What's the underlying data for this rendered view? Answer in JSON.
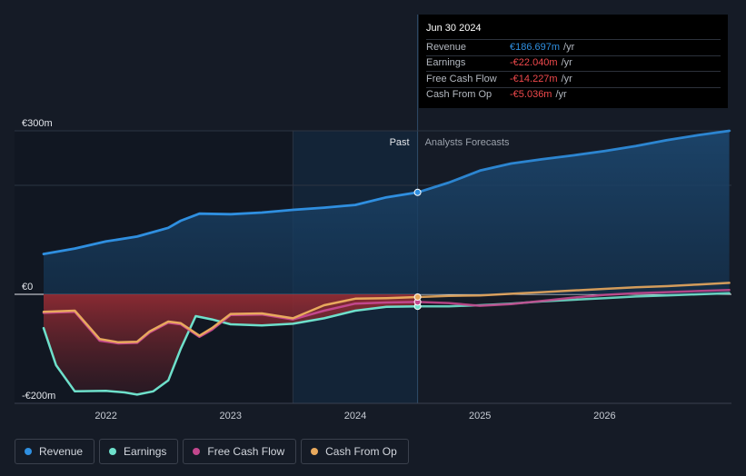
{
  "tooltip": {
    "date": "Jun 30 2024",
    "rows": [
      {
        "label": "Revenue",
        "value": "€186.697m",
        "unit": "/yr",
        "color": "#2f8fe0"
      },
      {
        "label": "Earnings",
        "value": "-€22.040m",
        "unit": "/yr",
        "color": "#f0494c"
      },
      {
        "label": "Free Cash Flow",
        "value": "-€14.227m",
        "unit": "/yr",
        "color": "#f0494c"
      },
      {
        "label": "Cash From Op",
        "value": "-€5.036m",
        "unit": "/yr",
        "color": "#f0494c"
      }
    ]
  },
  "region_labels": {
    "past": "Past",
    "forecast": "Analysts Forecasts"
  },
  "legend": [
    {
      "label": "Revenue",
      "color": "#2f8fe0"
    },
    {
      "label": "Earnings",
      "color": "#6ee0cb"
    },
    {
      "label": "Free Cash Flow",
      "color": "#c2478d"
    },
    {
      "label": "Cash From Op",
      "color": "#e8a95d"
    }
  ],
  "chart_data": {
    "type": "line",
    "currency_unit": "€m",
    "ylim": [
      -200,
      300
    ],
    "y_ticks": [
      {
        "value": 300,
        "label": "€300m"
      },
      {
        "value": 0,
        "label": "€0"
      },
      {
        "value": -200,
        "label": "-€200m"
      }
    ],
    "x_ticks": [
      {
        "value": 2022,
        "label": "2022"
      },
      {
        "value": 2023,
        "label": "2023"
      },
      {
        "value": 2024,
        "label": "2024"
      },
      {
        "value": 2025,
        "label": "2025"
      },
      {
        "value": 2026,
        "label": "2026"
      }
    ],
    "xlim": [
      2021.5,
      2027.0
    ],
    "past_end": 2024.5,
    "highlight_start": 2023.5,
    "series": [
      {
        "name": "Revenue",
        "color": "#2f8fe0",
        "points": [
          [
            2021.5,
            74
          ],
          [
            2021.75,
            84
          ],
          [
            2022.0,
            97
          ],
          [
            2022.25,
            106
          ],
          [
            2022.5,
            122
          ],
          [
            2022.6,
            135
          ],
          [
            2022.75,
            148
          ],
          [
            2023.0,
            147
          ],
          [
            2023.25,
            150
          ],
          [
            2023.5,
            155
          ],
          [
            2023.75,
            159
          ],
          [
            2024.0,
            164
          ],
          [
            2024.25,
            178
          ],
          [
            2024.5,
            187
          ],
          [
            2024.75,
            205
          ],
          [
            2025.0,
            227
          ],
          [
            2025.25,
            240
          ],
          [
            2025.5,
            248
          ],
          [
            2025.75,
            255
          ],
          [
            2026.0,
            263
          ],
          [
            2026.25,
            272
          ],
          [
            2026.5,
            283
          ],
          [
            2026.75,
            292
          ],
          [
            2027.0,
            300
          ]
        ]
      },
      {
        "name": "Earnings",
        "color": "#6ee0cb",
        "points": [
          [
            2021.5,
            -62
          ],
          [
            2021.6,
            -130
          ],
          [
            2021.75,
            -178
          ],
          [
            2022.0,
            -177
          ],
          [
            2022.15,
            -180
          ],
          [
            2022.25,
            -184
          ],
          [
            2022.38,
            -178
          ],
          [
            2022.5,
            -158
          ],
          [
            2022.6,
            -100
          ],
          [
            2022.72,
            -40
          ],
          [
            2022.85,
            -46
          ],
          [
            2023.0,
            -55
          ],
          [
            2023.25,
            -57
          ],
          [
            2023.5,
            -54
          ],
          [
            2023.75,
            -44
          ],
          [
            2024.0,
            -30
          ],
          [
            2024.25,
            -23
          ],
          [
            2024.5,
            -22
          ],
          [
            2024.75,
            -22
          ],
          [
            2025.0,
            -20
          ],
          [
            2025.25,
            -17
          ],
          [
            2025.5,
            -13
          ],
          [
            2025.75,
            -10
          ],
          [
            2026.0,
            -7
          ],
          [
            2026.25,
            -4
          ],
          [
            2026.5,
            -2
          ],
          [
            2026.75,
            0
          ],
          [
            2027.0,
            2
          ]
        ]
      },
      {
        "name": "Free Cash Flow",
        "color": "#c2478d",
        "points": [
          [
            2021.5,
            -34
          ],
          [
            2021.75,
            -32
          ],
          [
            2021.95,
            -85
          ],
          [
            2022.1,
            -90
          ],
          [
            2022.25,
            -89
          ],
          [
            2022.35,
            -70
          ],
          [
            2022.5,
            -52
          ],
          [
            2022.6,
            -55
          ],
          [
            2022.75,
            -78
          ],
          [
            2022.85,
            -65
          ],
          [
            2023.0,
            -38
          ],
          [
            2023.25,
            -37
          ],
          [
            2023.5,
            -46
          ],
          [
            2023.75,
            -30
          ],
          [
            2024.0,
            -17
          ],
          [
            2024.25,
            -15
          ],
          [
            2024.5,
            -14
          ],
          [
            2024.75,
            -16
          ],
          [
            2025.0,
            -21
          ],
          [
            2025.25,
            -18
          ],
          [
            2025.5,
            -12
          ],
          [
            2025.75,
            -6
          ],
          [
            2026.0,
            -1
          ],
          [
            2026.25,
            2
          ],
          [
            2026.5,
            4
          ],
          [
            2026.75,
            6
          ],
          [
            2027.0,
            8
          ]
        ]
      },
      {
        "name": "Cash From Op",
        "color": "#e8a95d",
        "points": [
          [
            2021.5,
            -32
          ],
          [
            2021.75,
            -30
          ],
          [
            2021.95,
            -82
          ],
          [
            2022.1,
            -88
          ],
          [
            2022.25,
            -87
          ],
          [
            2022.35,
            -68
          ],
          [
            2022.5,
            -50
          ],
          [
            2022.6,
            -53
          ],
          [
            2022.75,
            -76
          ],
          [
            2022.85,
            -62
          ],
          [
            2023.0,
            -36
          ],
          [
            2023.25,
            -35
          ],
          [
            2023.5,
            -44
          ],
          [
            2023.75,
            -20
          ],
          [
            2024.0,
            -8
          ],
          [
            2024.25,
            -7
          ],
          [
            2024.5,
            -5
          ],
          [
            2024.75,
            -3
          ],
          [
            2025.0,
            -2
          ],
          [
            2025.25,
            1
          ],
          [
            2025.5,
            4
          ],
          [
            2025.75,
            7
          ],
          [
            2026.0,
            10
          ],
          [
            2026.25,
            13
          ],
          [
            2026.5,
            15
          ],
          [
            2026.75,
            18
          ],
          [
            2027.0,
            21
          ]
        ]
      }
    ]
  }
}
